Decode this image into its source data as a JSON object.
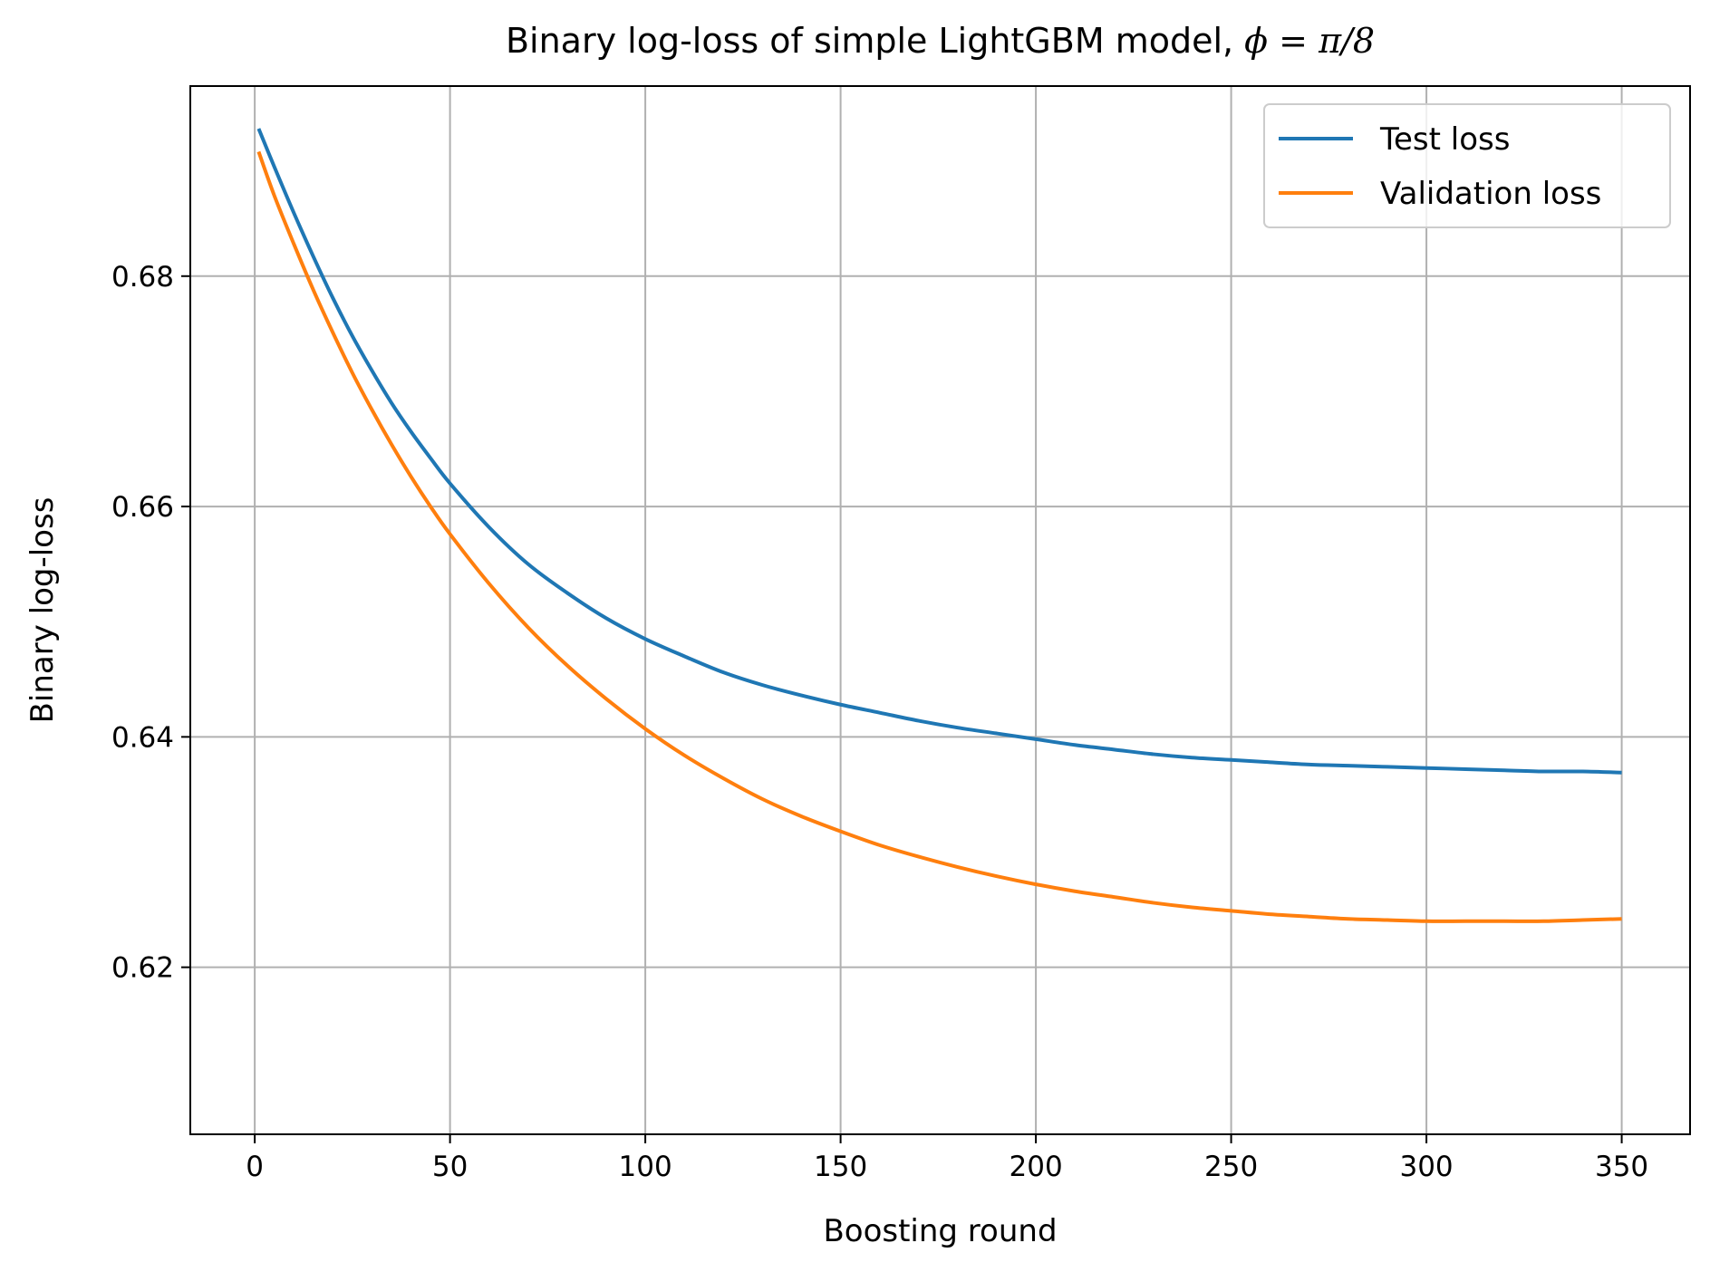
{
  "chart_data": {
    "type": "line",
    "title": "Binary log-loss of simple LightGBM model, ",
    "title_math": "ϕ = π/8",
    "xlabel": "Boosting round",
    "ylabel": "Binary log-loss",
    "xlim": [
      -16.5,
      367.5
    ],
    "ylim": [
      0.6055,
      0.6965
    ],
    "xticks": [
      0,
      50,
      100,
      150,
      200,
      250,
      300,
      350
    ],
    "xtick_labels": [
      "0",
      "50",
      "100",
      "150",
      "200",
      "250",
      "300",
      "350"
    ],
    "yticks": [
      0.62,
      0.64,
      0.66,
      0.68
    ],
    "ytick_labels": [
      "0.62",
      "0.64",
      "0.66",
      "0.68"
    ],
    "grid": true,
    "legend_position": "top-right",
    "x": [
      1,
      5,
      10,
      15,
      20,
      25,
      30,
      35,
      40,
      45,
      50,
      60,
      70,
      80,
      90,
      100,
      110,
      120,
      130,
      140,
      150,
      160,
      170,
      180,
      190,
      200,
      210,
      220,
      230,
      240,
      250,
      260,
      270,
      280,
      290,
      300,
      310,
      320,
      330,
      340,
      350
    ],
    "series": [
      {
        "name": "Test loss",
        "color": "#1f77b4",
        "values": [
          0.6928,
          0.6895,
          0.6855,
          0.6817,
          0.6781,
          0.6748,
          0.6718,
          0.669,
          0.6665,
          0.6642,
          0.662,
          0.6582,
          0.655,
          0.6525,
          0.6503,
          0.6485,
          0.647,
          0.6456,
          0.6445,
          0.6436,
          0.6428,
          0.6421,
          0.6414,
          0.6408,
          0.6403,
          0.6398,
          0.6393,
          0.6389,
          0.6385,
          0.6382,
          0.638,
          0.6378,
          0.6376,
          0.6375,
          0.6374,
          0.6373,
          0.6372,
          0.6371,
          0.637,
          0.637,
          0.6369
        ]
      },
      {
        "name": "Validation loss",
        "color": "#ff7f0e",
        "values": [
          0.6908,
          0.687,
          0.6828,
          0.6788,
          0.6751,
          0.6716,
          0.6684,
          0.6654,
          0.6626,
          0.66,
          0.6576,
          0.6533,
          0.6495,
          0.6462,
          0.6433,
          0.6407,
          0.6384,
          0.6364,
          0.6346,
          0.6331,
          0.6318,
          0.6306,
          0.6296,
          0.6287,
          0.6279,
          0.6272,
          0.6266,
          0.6261,
          0.6256,
          0.6252,
          0.6249,
          0.6246,
          0.6244,
          0.6242,
          0.6241,
          0.624,
          0.624,
          0.624,
          0.624,
          0.6241,
          0.6242
        ]
      }
    ]
  }
}
